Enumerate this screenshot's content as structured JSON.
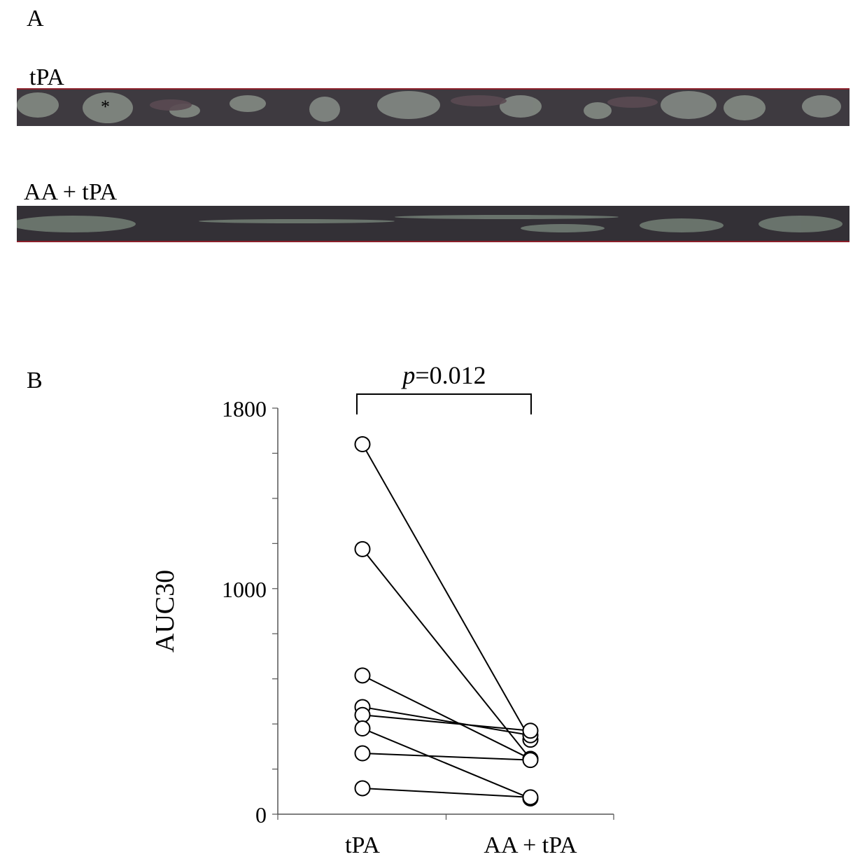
{
  "panel_a": {
    "letter": "A",
    "strips": [
      {
        "label": "tPA",
        "marker": "*"
      },
      {
        "label": "AA + tPA"
      }
    ]
  },
  "panel_b": {
    "letter": "B"
  },
  "chart_data": {
    "type": "line",
    "ylabel": "AUC30",
    "xlabel": "",
    "categories": [
      "tPA",
      "AA + tPA"
    ],
    "ylim": [
      0,
      1800
    ],
    "ytick_labels": [
      "0",
      "1000",
      "1800"
    ],
    "ytick_values": [
      0,
      1000,
      1800
    ],
    "minor_tick_step": 200,
    "significance": {
      "p_symbol": "p",
      "p_text": "=0.012"
    },
    "series": [
      {
        "values": [
          1640,
          330
        ]
      },
      {
        "values": [
          1175,
          245
        ]
      },
      {
        "values": [
          615,
          245
        ]
      },
      {
        "values": [
          475,
          350
        ]
      },
      {
        "values": [
          440,
          370
        ]
      },
      {
        "values": [
          380,
          70
        ]
      },
      {
        "values": [
          270,
          240
        ]
      },
      {
        "values": [
          115,
          75
        ]
      }
    ]
  }
}
